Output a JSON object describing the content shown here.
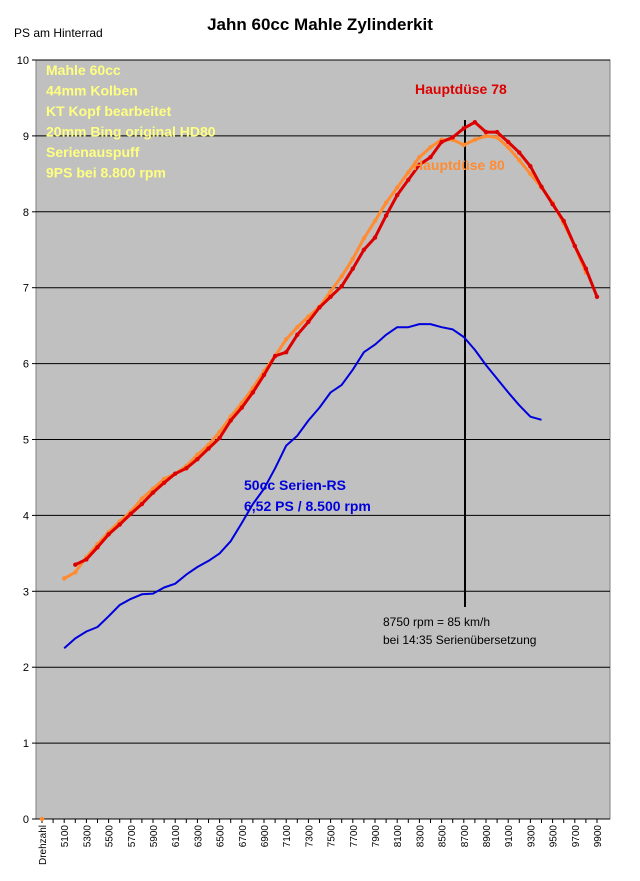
{
  "chart_data": {
    "type": "line",
    "title": "Jahn 60cc Mahle Zylinderkit",
    "y_label": "PS am Hinterrad",
    "categories": [
      "Drehzahl",
      null,
      "5100",
      null,
      "5300",
      null,
      "5500",
      null,
      "5700",
      null,
      "5900",
      null,
      "6100",
      null,
      "6300",
      null,
      "6500",
      null,
      "6700",
      null,
      "6900",
      null,
      "7100",
      null,
      "7300",
      null,
      "7500",
      null,
      "7700",
      null,
      "7900",
      null,
      "8100",
      null,
      "8300",
      null,
      "8500",
      null,
      "8700",
      null,
      "8900",
      null,
      "9100",
      null,
      "9300",
      null,
      "9500",
      null,
      "9700",
      null,
      "9900"
    ],
    "ylim": [
      0,
      10
    ],
    "yticks": [
      0,
      1,
      2,
      3,
      4,
      5,
      6,
      7,
      8,
      9,
      10
    ],
    "grid": true,
    "series": [
      {
        "name": "50cc Serien-RS",
        "color": "#0000dd",
        "values": [
          null,
          null,
          2.25,
          2.38,
          2.47,
          2.53,
          2.67,
          2.82,
          2.9,
          2.96,
          2.97,
          3.05,
          3.1,
          3.22,
          3.32,
          3.4,
          3.5,
          3.66,
          3.9,
          4.15,
          4.35,
          4.62,
          4.92,
          5.05,
          5.25,
          5.42,
          5.62,
          5.72,
          5.92,
          6.15,
          6.25,
          6.38,
          6.48,
          6.48,
          6.52,
          6.52,
          6.48,
          6.45,
          6.35,
          6.18,
          5.98,
          5.8,
          5.62,
          5.45,
          5.3,
          5.26,
          null,
          null,
          null,
          null,
          null
        ]
      },
      {
        "name": "Hauptdüse 80",
        "color": "#ff8c33",
        "values": [
          0,
          null,
          3.17,
          3.25,
          3.45,
          3.62,
          3.78,
          3.92,
          4.05,
          4.22,
          4.35,
          4.48,
          4.55,
          4.65,
          4.8,
          4.93,
          5.1,
          5.3,
          5.48,
          5.68,
          5.9,
          6.1,
          6.32,
          6.48,
          6.62,
          6.75,
          6.95,
          7.15,
          7.38,
          7.65,
          7.88,
          8.12,
          8.32,
          8.52,
          8.72,
          8.85,
          8.95,
          8.95,
          8.88,
          8.95,
          9.0,
          8.98,
          8.85,
          8.68,
          8.5,
          8.32,
          8.12,
          7.85,
          7.55,
          7.2,
          null
        ]
      },
      {
        "name": "Hauptdüse 78",
        "color": "#dd0000",
        "values": [
          null,
          null,
          null,
          3.35,
          3.42,
          3.58,
          3.75,
          3.88,
          4.02,
          4.15,
          4.3,
          4.43,
          4.55,
          4.62,
          4.74,
          4.88,
          5.02,
          5.25,
          5.42,
          5.62,
          5.85,
          6.1,
          6.15,
          6.38,
          6.55,
          6.74,
          6.88,
          7.02,
          7.25,
          7.5,
          7.66,
          7.95,
          8.22,
          8.42,
          8.62,
          8.72,
          8.92,
          8.98,
          9.1,
          9.18,
          9.05,
          9.05,
          8.92,
          8.78,
          8.6,
          8.33,
          8.1,
          7.88,
          7.55,
          7.25,
          6.88
        ]
      }
    ],
    "info_box": [
      "Mahle 60cc",
      "44mm Kolben",
      "KT Kopf bearbeitet",
      "20mm Bing original  HD80",
      "Serienauspuff",
      "9PS bei 8.800 rpm"
    ],
    "series_note": "6,52 PS / 8.500 rpm",
    "annotation": [
      "8750 rpm = 85 km/h",
      "bei 14:35 Serienübersetzung"
    ]
  }
}
